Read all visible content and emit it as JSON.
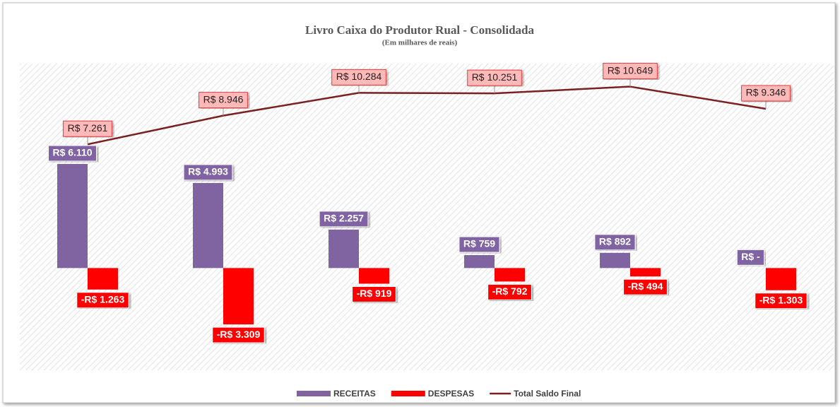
{
  "chart_data": {
    "type": "bar",
    "title": "Livro Caixa do Produtor Rual - Consolidada",
    "subtitle": "(Em milhares de reais)",
    "categories": [
      null,
      null,
      null,
      null,
      null,
      null
    ],
    "ylim": [
      -6000,
      12000
    ],
    "yticks": [
      -6000,
      -4000,
      -2000,
      0,
      2000,
      4000,
      6000,
      8000,
      10000,
      12000
    ],
    "grid": true,
    "legend": "bottom",
    "series": [
      {
        "name": "RECEITAS",
        "type": "bar",
        "color": "#8064a2",
        "values": [
          6110,
          4993,
          2257,
          759,
          892,
          0
        ],
        "value_labels": [
          "R$ 6.110",
          "R$ 4.993",
          "R$ 2.257",
          "R$ 759",
          "R$ 892",
          "R$ -"
        ]
      },
      {
        "name": "DESPESAS",
        "type": "bar",
        "color": "#ff0000",
        "values": [
          -1263,
          -3309,
          -919,
          -792,
          -494,
          -1303
        ],
        "value_labels": [
          "-R$ 1.263",
          "-R$ 3.309",
          "-R$ 919",
          "-R$ 792",
          "-R$ 494",
          "-R$ 1.303"
        ]
      },
      {
        "name": "Total Saldo Final",
        "type": "line",
        "color": "#7b2020",
        "values": [
          7261,
          8946,
          10284,
          10251,
          10649,
          9346
        ],
        "value_labels": [
          "R$ 7.261",
          "R$ 8.946",
          "R$ 10.284",
          "R$ 10.251",
          "R$ 10.649",
          "R$ 9.346"
        ]
      }
    ]
  }
}
